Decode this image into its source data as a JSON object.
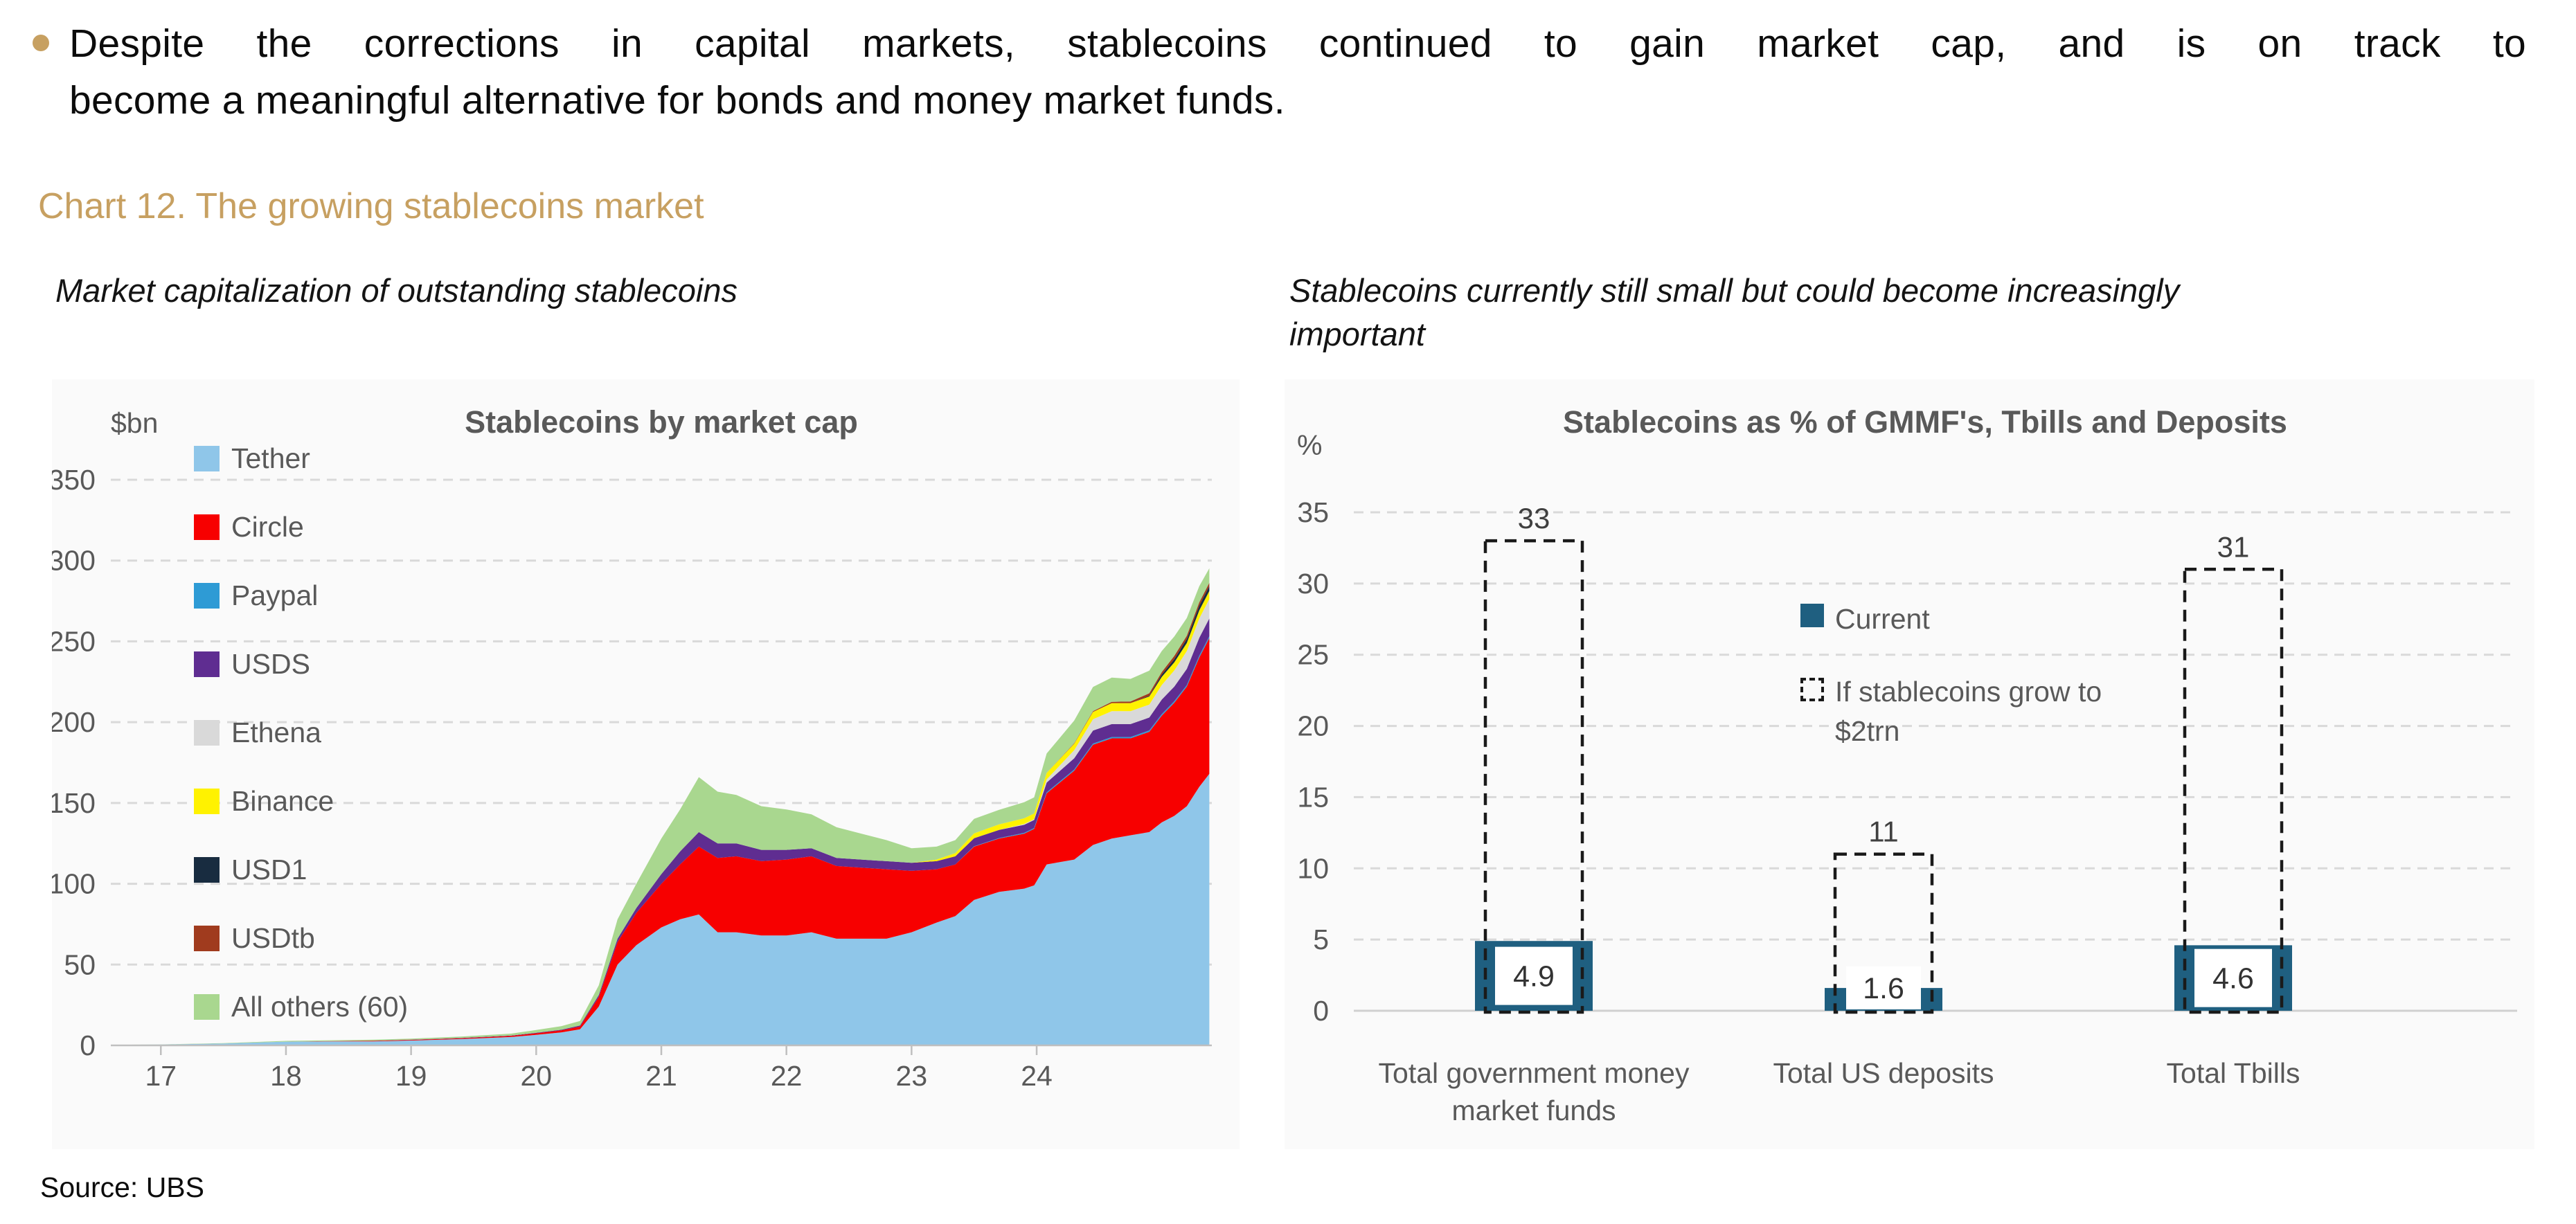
{
  "page": {
    "bullet_lines": [
      "Despite the corrections in capital markets, stablecoins continued to gain market cap, and is on track to",
      "become a meaningful alternative for bonds and money market funds."
    ],
    "section_title": "Chart 12. The growing stablecoins market",
    "left_subtitle": "Market capitalization of outstanding stablecoins",
    "right_subtitle_lines": [
      "Stablecoins currently still small but could become increasingly",
      "important"
    ],
    "source": "Source: UBS",
    "accent_color": "#C7A061"
  },
  "chart_data": [
    {
      "type": "area",
      "title": "Stablecoins by market cap",
      "unit_label": "$bn",
      "grid": "dashed-horizontal",
      "legend_position": "left-vertical-inside",
      "x_domain": [
        16.6,
        25.4
      ],
      "x_tick_years": [
        17,
        18,
        19,
        20,
        21,
        22,
        23,
        24
      ],
      "x_ticks": [
        "17",
        "18",
        "19",
        "20",
        "21",
        "22",
        "23",
        "24"
      ],
      "ylim": [
        0,
        350
      ],
      "y_ticks": [
        0,
        50,
        100,
        150,
        200,
        250,
        300,
        350
      ],
      "x": [
        16.6,
        17,
        17.5,
        18,
        18.3,
        18.7,
        19,
        19.4,
        19.8,
        20,
        20.2,
        20.35,
        20.5,
        20.65,
        20.8,
        21,
        21.15,
        21.3,
        21.45,
        21.6,
        21.8,
        22,
        22.2,
        22.4,
        22.6,
        22.8,
        23,
        23.2,
        23.35,
        23.5,
        23.7,
        23.9,
        23.98,
        24.08,
        24.3,
        24.45,
        24.6,
        24.75,
        24.9,
        25,
        25.1,
        25.2,
        25.3,
        25.38
      ],
      "series": [
        {
          "name": "Tether",
          "color": "#8FC6E9",
          "values": [
            0.3,
            0.5,
            1.2,
            2.3,
            2.5,
            2.5,
            3.0,
            3.9,
            5.2,
            6.5,
            8.0,
            10,
            24,
            50,
            62,
            73,
            78,
            81,
            70,
            70,
            68,
            68,
            70,
            66,
            66,
            66,
            70,
            76,
            80,
            90,
            95,
            97,
            99,
            112,
            115,
            124,
            128,
            130,
            132,
            138,
            142,
            148,
            160,
            168
          ]
        },
        {
          "name": "Circle",
          "color": "#F70000",
          "values": [
            0,
            0,
            0,
            0,
            0.1,
            0.3,
            0.4,
            0.5,
            0.7,
            1.0,
            1.3,
            1.7,
            6,
            14,
            20,
            27,
            34,
            42,
            46,
            47,
            46,
            47,
            47,
            45,
            44,
            43,
            38,
            33,
            32,
            33,
            33,
            34,
            35,
            44,
            55,
            62,
            62,
            60,
            62,
            66,
            70,
            74,
            80,
            84
          ]
        },
        {
          "name": "Paypal",
          "color": "#2E9BD5",
          "values": [
            0,
            0,
            0,
            0,
            0,
            0,
            0,
            0,
            0,
            0,
            0,
            0,
            0,
            0,
            0,
            0,
            0,
            0,
            0,
            0,
            0,
            0,
            0,
            0,
            0,
            0,
            0,
            0,
            0,
            0.2,
            0.3,
            0.5,
            0.5,
            0.6,
            0.7,
            0.8,
            0.8,
            0.8,
            0.9,
            1,
            1,
            1,
            1.2,
            1.2
          ]
        },
        {
          "name": "USDS",
          "color": "#5F2D91",
          "values": [
            0,
            0,
            0,
            0,
            0,
            0.1,
            0.1,
            0.2,
            0.2,
            0.3,
            0.4,
            0.6,
            1.2,
            2,
            3,
            6,
            8,
            9,
            9,
            8,
            7,
            6,
            5,
            5,
            5,
            5,
            5,
            5,
            5,
            5,
            5,
            5,
            5,
            6,
            7,
            8,
            8,
            8,
            8,
            9,
            9,
            10,
            11,
            11
          ]
        },
        {
          "name": "Ethena",
          "color": "#D9D9D9",
          "values": [
            0,
            0,
            0,
            0,
            0,
            0,
            0,
            0,
            0,
            0,
            0,
            0,
            0,
            0,
            0,
            0,
            0,
            0,
            0,
            0,
            0,
            0,
            0,
            0,
            0,
            0,
            0,
            0,
            0,
            0,
            0,
            0.5,
            0.5,
            2,
            5,
            7,
            8,
            8,
            8,
            9,
            10,
            11,
            12,
            12
          ]
        },
        {
          "name": "Binance",
          "color": "#FFF200",
          "values": [
            0,
            0,
            0,
            0,
            0,
            0,
            0,
            0,
            0,
            0,
            0,
            0,
            0,
            0,
            0,
            0,
            0,
            0,
            0,
            0,
            0,
            0,
            0,
            0,
            0,
            0,
            0,
            1,
            2,
            3,
            3.5,
            3.5,
            3.5,
            4,
            4,
            4.5,
            5,
            5,
            5,
            5,
            5,
            5,
            5,
            5
          ]
        },
        {
          "name": "USD1",
          "color": "#182C40",
          "values": [
            0,
            0,
            0,
            0,
            0,
            0,
            0,
            0,
            0,
            0,
            0,
            0,
            0,
            0,
            0,
            0,
            0,
            0,
            0,
            0,
            0,
            0,
            0,
            0,
            0,
            0,
            0,
            0,
            0,
            0,
            0,
            0,
            0,
            0,
            0,
            0,
            0,
            0,
            0.5,
            1.5,
            2,
            2.5,
            3,
            3
          ]
        },
        {
          "name": "USDtb",
          "color": "#A03B1E",
          "values": [
            0,
            0,
            0,
            0,
            0,
            0,
            0,
            0,
            0,
            0,
            0,
            0,
            0,
            0,
            0,
            0,
            0,
            0,
            0,
            0,
            0,
            0,
            0,
            0,
            0,
            0,
            0,
            0,
            0,
            0,
            0,
            0,
            0,
            0,
            0.3,
            0.5,
            0.8,
            1,
            1.5,
            1.5,
            2,
            2,
            2,
            2
          ]
        },
        {
          "name": "All others (60)",
          "color": "#A9D78F",
          "values": [
            0,
            0.1,
            0.2,
            0.5,
            0.5,
            0.6,
            0.7,
            0.9,
            1.2,
            1.7,
            2.2,
            2.8,
            6,
            12,
            15,
            22,
            26,
            34,
            32,
            30,
            27,
            25,
            21,
            19,
            16,
            13,
            9,
            8,
            8,
            9,
            9,
            10,
            10,
            12,
            14,
            15,
            15,
            14,
            14,
            13,
            12,
            11,
            10,
            9
          ]
        }
      ]
    },
    {
      "type": "bar",
      "title": "Stablecoins as % of GMMF's, Tbills and Deposits",
      "unit_label": "%",
      "grid": "dashed-horizontal",
      "ylim": [
        0,
        35
      ],
      "y_ticks": [
        0,
        5,
        10,
        15,
        20,
        25,
        30,
        35
      ],
      "categories": [
        "Total government money market funds",
        "Total US deposits",
        "Total Tbills"
      ],
      "series": [
        {
          "name": "Current",
          "style": "solid",
          "color": "#1F5F80",
          "values": [
            4.9,
            1.6,
            4.6
          ]
        },
        {
          "name": "If stablecoins grow to $2trn",
          "style": "dashed-outline",
          "color": "#1a1a1a",
          "values": [
            33,
            11,
            31
          ]
        }
      ],
      "bar_labels": {
        "current": [
          "4.9",
          "1.6",
          "4.6"
        ],
        "scenario": [
          "33",
          "11",
          "31"
        ]
      }
    }
  ]
}
